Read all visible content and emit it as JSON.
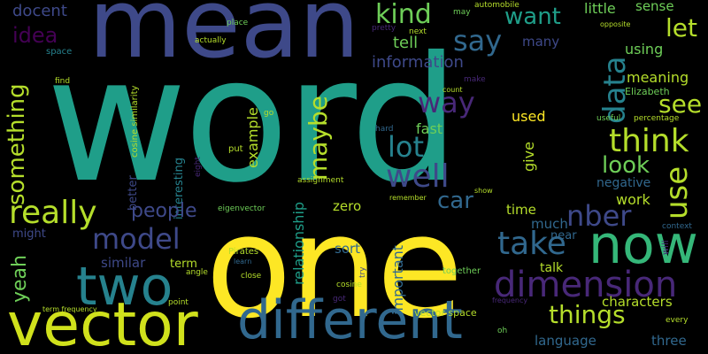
{
  "words": {
    "word": "word",
    "mean": "mean",
    "one": "one",
    "vector": "vector",
    "different": "different",
    "two": "two",
    "now": "now",
    "dimension": "dimension",
    "really": "really",
    "data": "data",
    "something": "something",
    "think": "think",
    "kind": "kind",
    "say": "say",
    "want": "want",
    "let": "let",
    "idea": "idea",
    "docent": "docent",
    "well": "well",
    "lot": "lot",
    "way": "way",
    "maybe": "maybe",
    "model": "model",
    "take": "take",
    "nber": "nber",
    "things": "things",
    "see": "see",
    "use": "use",
    "look": "look",
    "car": "car",
    "people": "people",
    "yeah": "yeah",
    "information": "information",
    "tell": "tell",
    "many": "many",
    "little": "little",
    "sense": "sense",
    "using": "using",
    "meaning": "meaning",
    "fast": "fast",
    "much": "much",
    "example": "example",
    "used": "used",
    "give": "give",
    "time": "time",
    "zero": "zero",
    "relationship": "relationship",
    "important": "important",
    "similar": "similar",
    "sort": "sort",
    "work": "work",
    "negative": "negative",
    "characters": "characters",
    "language": "language",
    "three": "three",
    "talk": "talk",
    "near": "near",
    "term": "term",
    "better": "better",
    "interesting": "interesting",
    "might": "might",
    "vector_space": "vector space",
    "together": "together",
    "elizabeth": "Elizabeth",
    "cosine_similarity": "cosine similarity",
    "space": "space",
    "actually": "actually",
    "place": "place",
    "find": "find",
    "next": "next",
    "pretty": "pretty",
    "automobile": "automobile",
    "may": "may",
    "opposite": "opposite",
    "make": "make",
    "count": "count",
    "useful": "useful",
    "percentage": "percentage",
    "go": "go",
    "hard": "hard",
    "put": "put",
    "eight": "eight",
    "assignment": "assignment",
    "eigenvector": "eigenvector",
    "remember": "remember",
    "show": "show",
    "will": "will",
    "context": "context",
    "pirates": "Pirates",
    "learn": "learn",
    "angle": "angle",
    "close": "close",
    "cosine": "cosine",
    "try": "try",
    "got": "got",
    "point": "point",
    "frequency": "frequency",
    "term_frequency": "term frequency",
    "every": "every",
    "oh": "oh"
  },
  "colors": {
    "yellow": "#fde725",
    "lime": "#b5de2b",
    "green": "#6ece58",
    "mint": "#35b779",
    "teal": "#1f9e89",
    "cyan": "#26828e",
    "steel": "#31688e",
    "indigo": "#3e4989",
    "violet": "#482878",
    "purple": "#440154"
  }
}
